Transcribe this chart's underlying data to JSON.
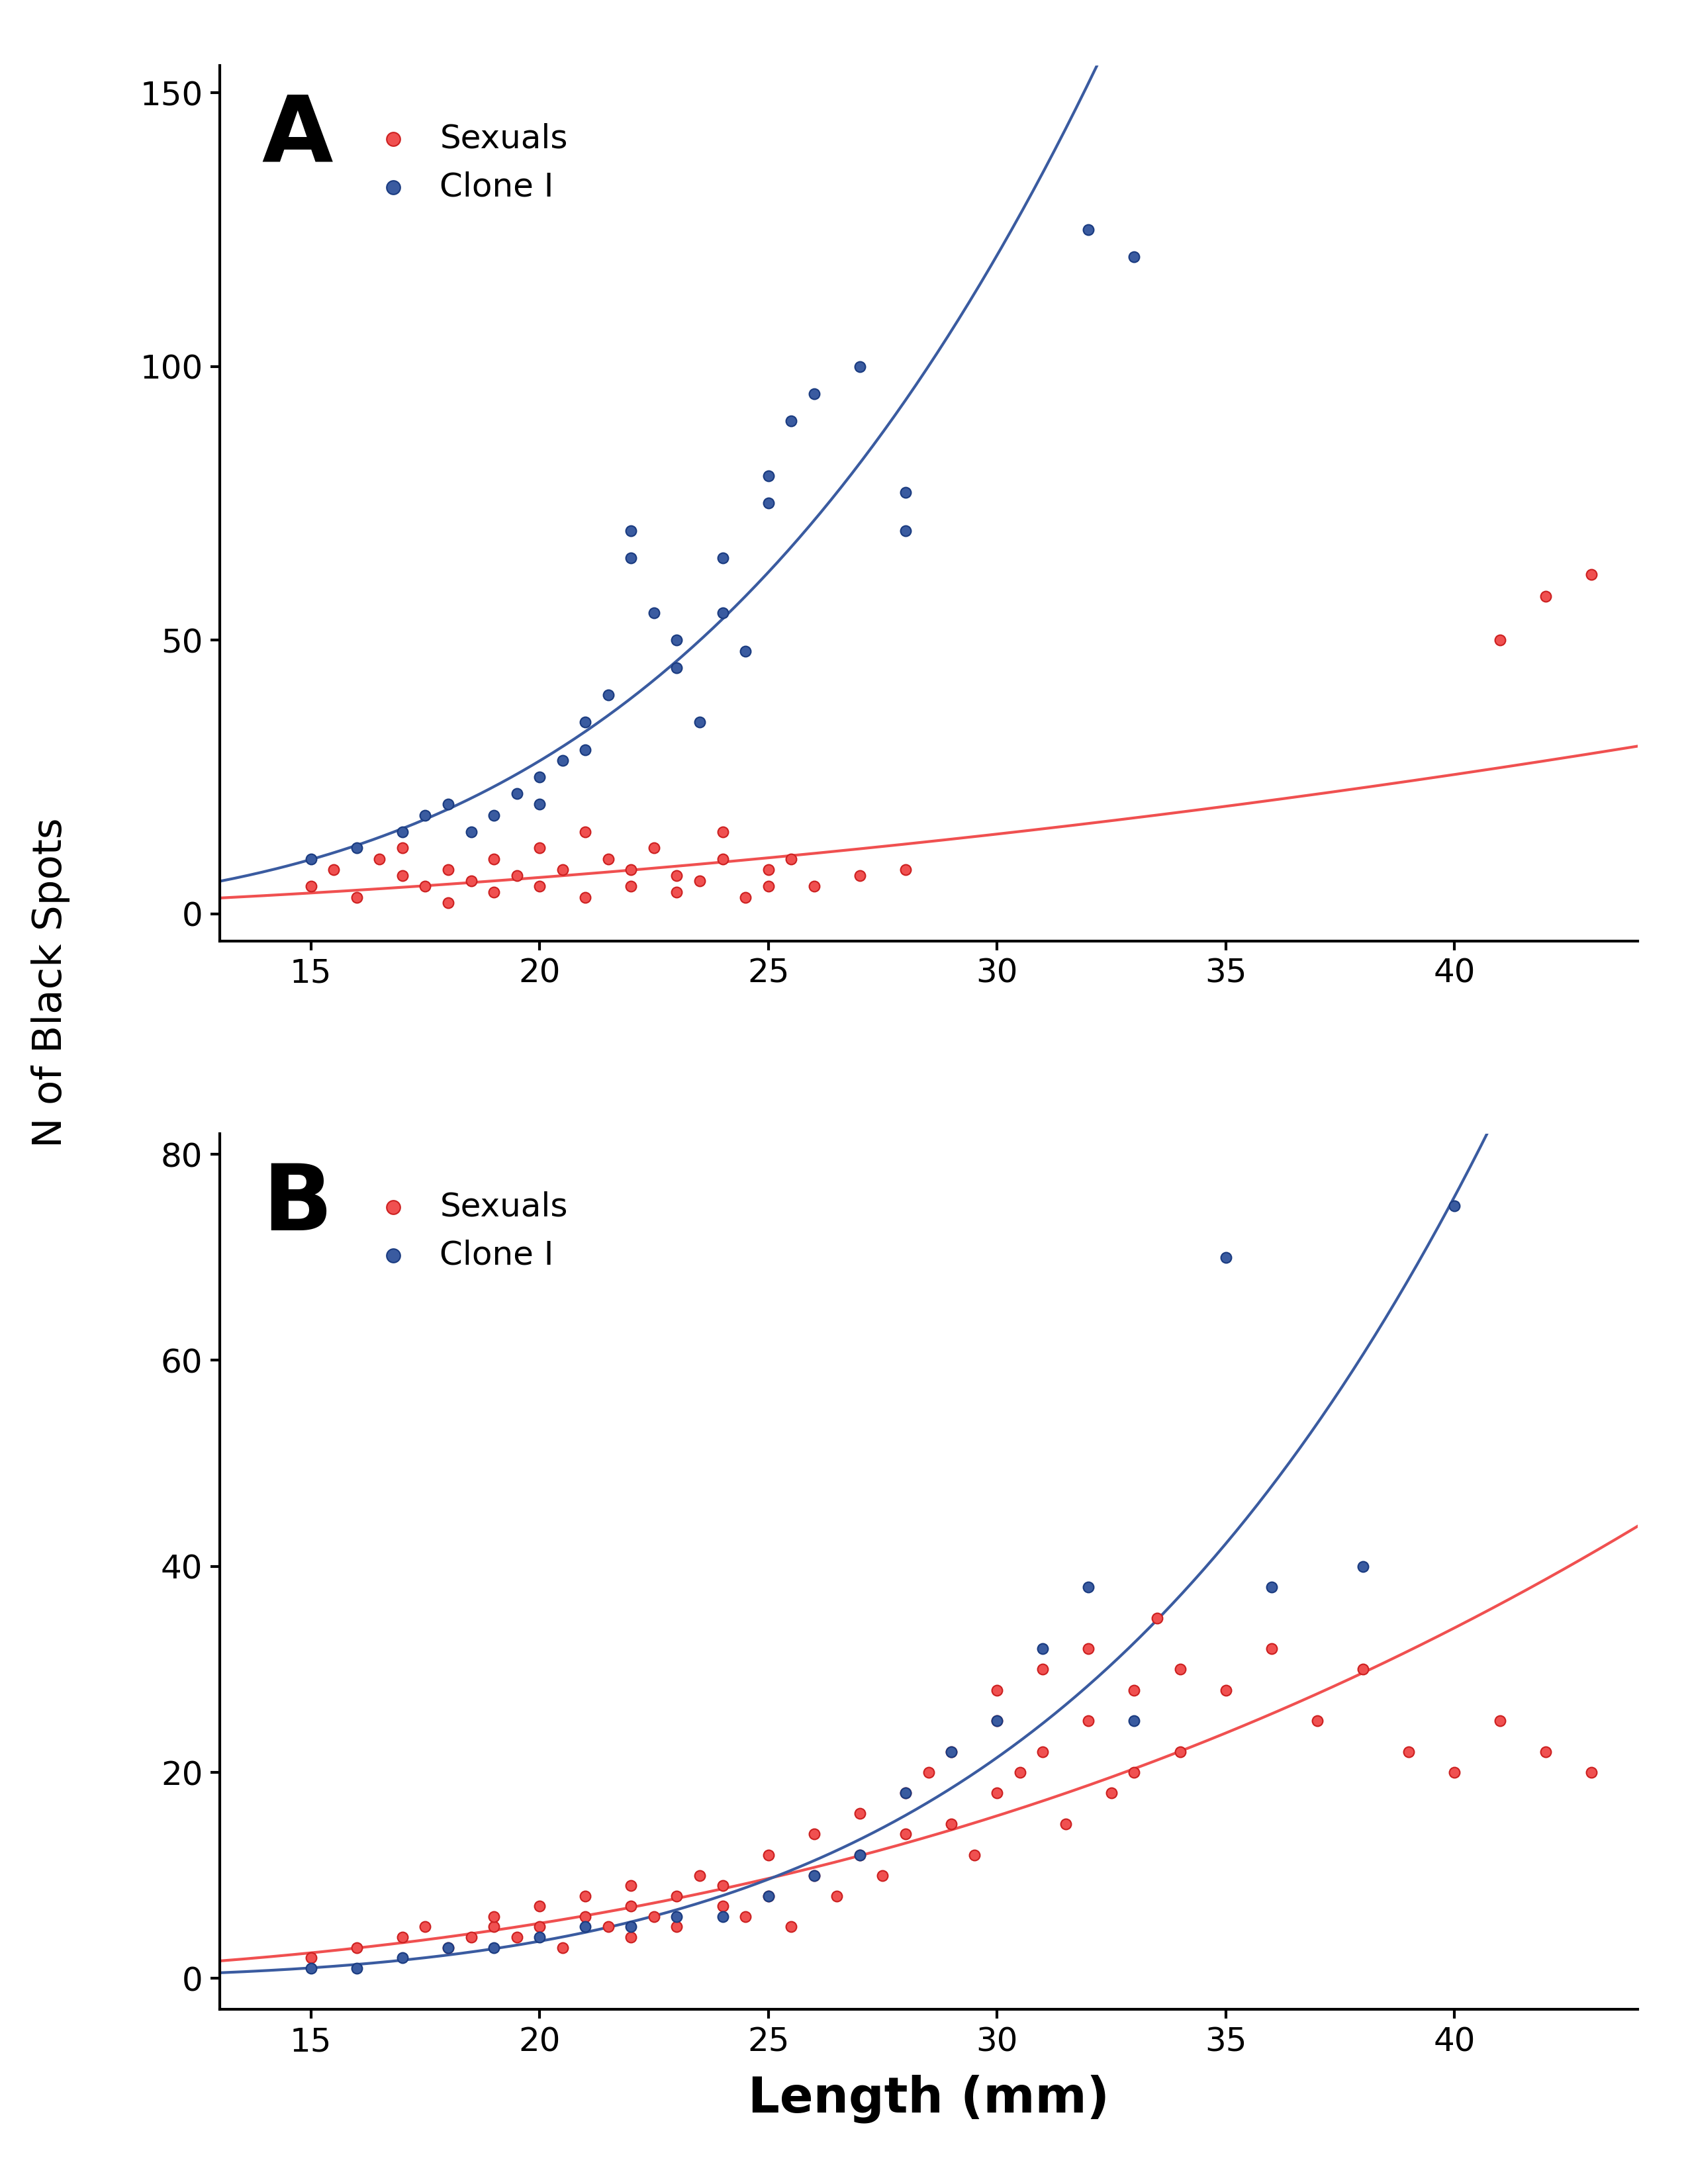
{
  "panel_A": {
    "label": "A",
    "sexual_x": [
      15,
      15.5,
      16,
      16.5,
      17,
      17,
      17.5,
      18,
      18,
      18.5,
      19,
      19,
      19.5,
      20,
      20,
      20.5,
      21,
      21,
      21.5,
      22,
      22,
      22.5,
      23,
      23,
      23.5,
      24,
      24,
      24.5,
      25,
      25,
      25.5,
      26,
      27,
      28,
      41,
      42,
      43
    ],
    "sexual_y": [
      5,
      8,
      3,
      10,
      7,
      12,
      5,
      8,
      2,
      6,
      10,
      4,
      7,
      12,
      5,
      8,
      15,
      3,
      10,
      5,
      8,
      12,
      4,
      7,
      6,
      10,
      15,
      3,
      8,
      5,
      10,
      5,
      7,
      8,
      50,
      58,
      62
    ],
    "clone_x": [
      15,
      16,
      17,
      17.5,
      18,
      18.5,
      19,
      19.5,
      20,
      20,
      20.5,
      21,
      21,
      21.5,
      22,
      22,
      22.5,
      23,
      23,
      23.5,
      24,
      24,
      24.5,
      25,
      25,
      25.5,
      26,
      27,
      28,
      28,
      32,
      33
    ],
    "clone_y": [
      10,
      12,
      15,
      18,
      20,
      15,
      18,
      22,
      25,
      20,
      28,
      30,
      35,
      40,
      65,
      70,
      55,
      50,
      45,
      35,
      65,
      55,
      48,
      75,
      80,
      90,
      95,
      100,
      77,
      70,
      125,
      120
    ],
    "xlim": [
      13,
      44
    ],
    "ylim": [
      -5,
      155
    ],
    "xticks": [
      15,
      20,
      25,
      30,
      35,
      40
    ],
    "yticks": [
      0,
      50,
      100,
      150
    ]
  },
  "panel_B": {
    "label": "B",
    "sexual_x": [
      15,
      16,
      17,
      17.5,
      18,
      18.5,
      19,
      19,
      19.5,
      20,
      20,
      20.5,
      21,
      21,
      21.5,
      22,
      22,
      22,
      22.5,
      23,
      23,
      23.5,
      24,
      24,
      24.5,
      25,
      25,
      25.5,
      26,
      26,
      26.5,
      27,
      27,
      27.5,
      28,
      28,
      28.5,
      29,
      29,
      29.5,
      30,
      30,
      30,
      30.5,
      31,
      31,
      31.5,
      32,
      32,
      32.5,
      33,
      33,
      33.5,
      34,
      34,
      35,
      36,
      37,
      38,
      39,
      40,
      41,
      42,
      43
    ],
    "sexual_y": [
      2,
      3,
      4,
      5,
      3,
      4,
      5,
      6,
      4,
      5,
      7,
      3,
      6,
      8,
      5,
      4,
      7,
      9,
      6,
      8,
      5,
      10,
      7,
      9,
      6,
      8,
      12,
      5,
      10,
      14,
      8,
      12,
      16,
      10,
      18,
      14,
      20,
      15,
      22,
      12,
      25,
      28,
      18,
      20,
      22,
      30,
      15,
      32,
      25,
      18,
      28,
      20,
      35,
      22,
      30,
      28,
      32,
      25,
      30,
      22,
      20,
      25,
      22,
      20
    ],
    "clone_x": [
      15,
      16,
      17,
      18,
      19,
      20,
      21,
      22,
      23,
      24,
      25,
      26,
      27,
      28,
      29,
      30,
      31,
      32,
      33,
      35,
      36,
      38,
      40
    ],
    "clone_y": [
      1,
      1,
      2,
      3,
      3,
      4,
      5,
      5,
      6,
      6,
      8,
      10,
      12,
      18,
      22,
      25,
      32,
      38,
      25,
      70,
      38,
      40,
      75
    ],
    "xlim": [
      13,
      44
    ],
    "ylim": [
      -3,
      82
    ],
    "xticks": [
      15,
      20,
      25,
      30,
      35,
      40
    ],
    "yticks": [
      0,
      20,
      40,
      60,
      80
    ]
  },
  "sexual_color": "#F05050",
  "clone_color": "#3A5BA0",
  "sexual_edge": "#CC2020",
  "clone_edge": "#1A3B80",
  "sexual_label": "Sexuals",
  "clone_label": "Clone I",
  "ylabel": "N of Black Spots",
  "xlabel": "Length (mm)",
  "marker_size": 130,
  "line_width": 3.0,
  "background_color": "#ffffff"
}
